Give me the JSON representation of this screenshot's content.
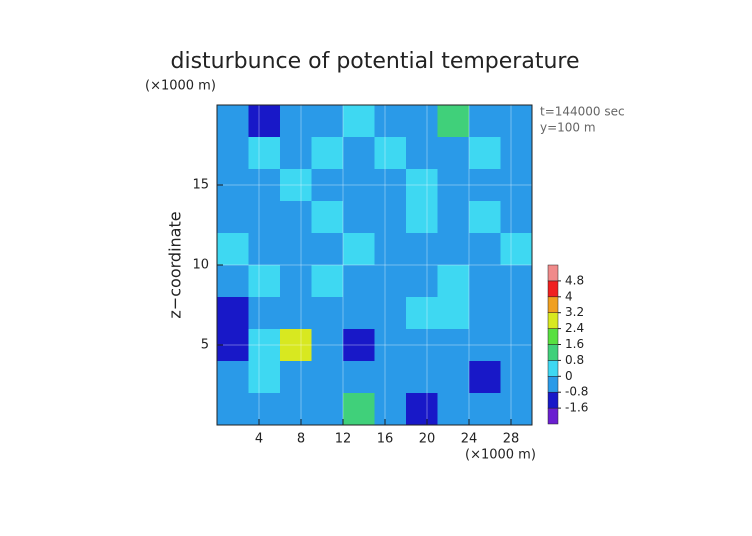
{
  "chart_data": {
    "type": "contour",
    "title": "disturbunce of potential temperature",
    "y_unit": "(×1000 m)",
    "x_unit": "(×1000 m)",
    "ylabel": "z−coordinate",
    "annotations": [
      "t=144000 sec",
      "y=100 m"
    ],
    "xlim": [
      0,
      30
    ],
    "ylim": [
      0,
      20
    ],
    "xticks": [
      4,
      8,
      12,
      16,
      20,
      24,
      28
    ],
    "yticks": [
      5,
      10,
      15
    ],
    "x": [
      1.5,
      4.5,
      7.5,
      10.5,
      13.5,
      16.5,
      19.5,
      22.5,
      25.5,
      28.5
    ],
    "y": [
      19,
      17,
      15,
      13,
      11,
      9,
      7,
      5,
      3,
      1
    ],
    "z": [
      [
        -0.3,
        -1.0,
        -0.3,
        -0.3,
        0.3,
        -0.3,
        -0.3,
        1.0,
        -0.3,
        -0.3
      ],
      [
        -0.3,
        0.3,
        -0.3,
        0.3,
        -0.3,
        0.3,
        -0.3,
        -0.3,
        0.3,
        -0.3
      ],
      [
        -0.3,
        -0.3,
        0.3,
        -0.3,
        -0.3,
        -0.3,
        0.3,
        -0.3,
        -0.3,
        -0.3
      ],
      [
        -0.3,
        -0.3,
        -0.3,
        0.3,
        -0.3,
        -0.3,
        0.3,
        -0.3,
        0.3,
        -0.3
      ],
      [
        0.3,
        -0.3,
        -0.3,
        -0.3,
        0.3,
        -0.3,
        -0.3,
        -0.3,
        -0.3,
        0.3
      ],
      [
        -0.3,
        0.3,
        -0.3,
        0.3,
        -0.3,
        -0.3,
        -0.3,
        0.3,
        -0.3,
        -0.3
      ],
      [
        -1.0,
        -0.3,
        -0.3,
        -0.3,
        -0.3,
        -0.3,
        0.3,
        0.3,
        -0.3,
        -0.3
      ],
      [
        -1.0,
        0.3,
        2.6,
        -0.3,
        -1.0,
        -0.3,
        -0.3,
        -0.3,
        -0.3,
        -0.3
      ],
      [
        -0.3,
        0.3,
        -0.3,
        -0.3,
        -0.3,
        -0.3,
        -0.3,
        -0.3,
        -1.0,
        -0.3
      ],
      [
        -0.3,
        -0.3,
        -0.3,
        -0.3,
        1.0,
        -0.3,
        -1.0,
        -0.3,
        -0.3,
        -0.3
      ]
    ],
    "colorbar": {
      "levels": [
        -2.4,
        -1.6,
        -0.8,
        0,
        0.8,
        1.6,
        2.4,
        3.2,
        4,
        4.8,
        5.6
      ],
      "colors": [
        "#6a1fd0",
        "#1818c8",
        "#2a9ae8",
        "#3ed8f2",
        "#40d07a",
        "#58e040",
        "#d8e820",
        "#f0a020",
        "#f02020",
        "#f08a8a"
      ],
      "ticks": [
        -1.6,
        -0.8,
        0,
        0.8,
        1.6,
        2.4,
        3.2,
        4,
        4.8
      ]
    },
    "grid": true,
    "grid_color": "#ffffff"
  }
}
